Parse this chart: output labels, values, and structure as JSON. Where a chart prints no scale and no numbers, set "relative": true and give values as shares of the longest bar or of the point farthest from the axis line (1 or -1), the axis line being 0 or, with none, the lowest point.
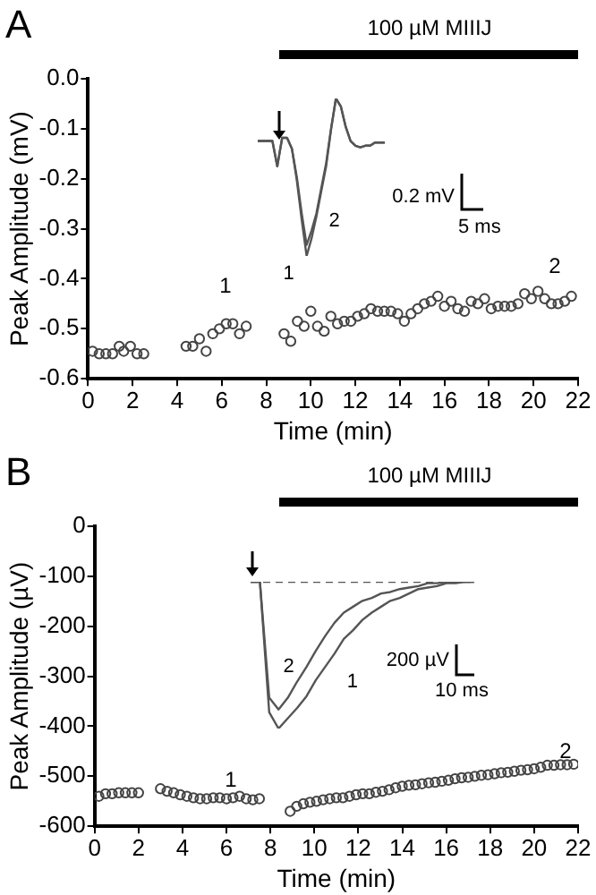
{
  "chart_data": [
    {
      "type": "scatter",
      "title": "A",
      "xlabel": "Time (min)",
      "ylabel": "Peak Amplitude (mV)",
      "marker": "circle",
      "legend": false,
      "grid": false,
      "xlim": [
        0,
        22
      ],
      "xticks": [
        0,
        2,
        4,
        6,
        8,
        10,
        12,
        14,
        16,
        18,
        20,
        22
      ],
      "ylim": [
        -0.6,
        0
      ],
      "yticks": [
        -0.6,
        -0.5,
        -0.4,
        -0.3,
        -0.2,
        -0.1,
        {
          "value": 0,
          "label": "0.0"
        }
      ],
      "series": [
        {
          "color": "#444444",
          "x": [
            0.2,
            0.5,
            0.8,
            1.1,
            1.4,
            1.6,
            1.9,
            2.2,
            2.5,
            4.4,
            4.7,
            5.0,
            5.3,
            5.6,
            5.9,
            6.2,
            6.5,
            6.8,
            7.1,
            8.8,
            9.1,
            9.4,
            9.7,
            10.0,
            10.3,
            10.6,
            10.9,
            11.2,
            11.5,
            11.8,
            12.1,
            12.4,
            12.7,
            13.0,
            13.3,
            13.6,
            13.9,
            14.2,
            14.5,
            14.8,
            15.1,
            15.4,
            15.7,
            16.0,
            16.3,
            16.6,
            16.9,
            17.2,
            17.5,
            17.8,
            18.1,
            18.4,
            18.7,
            19.0,
            19.3,
            19.6,
            19.9,
            20.2,
            20.5,
            20.8,
            21.1,
            21.4,
            21.7
          ],
          "values": [
            -0.545,
            -0.55,
            -0.55,
            -0.55,
            -0.535,
            -0.545,
            -0.535,
            -0.55,
            -0.55,
            -0.535,
            -0.535,
            -0.52,
            -0.545,
            -0.51,
            -0.5,
            -0.49,
            -0.49,
            -0.51,
            -0.495,
            -0.51,
            -0.525,
            -0.485,
            -0.495,
            -0.465,
            -0.495,
            -0.505,
            -0.475,
            -0.49,
            -0.485,
            -0.485,
            -0.475,
            -0.47,
            -0.46,
            -0.465,
            -0.465,
            -0.465,
            -0.47,
            -0.485,
            -0.47,
            -0.46,
            -0.45,
            -0.445,
            -0.435,
            -0.455,
            -0.445,
            -0.46,
            -0.465,
            -0.445,
            -0.45,
            -0.44,
            -0.46,
            -0.455,
            -0.455,
            -0.455,
            -0.45,
            -0.43,
            -0.44,
            -0.425,
            -0.44,
            -0.45,
            -0.45,
            -0.445,
            -0.435
          ]
        }
      ],
      "annotations": [
        "100 µM MIIIJ",
        "1",
        "2"
      ]
    },
    {
      "type": "line",
      "relative": true,
      "legend": false,
      "line_style": "solid",
      "categories": [
        null,
        null,
        null,
        null,
        null,
        null,
        null,
        null,
        null,
        null,
        null,
        null,
        null,
        null,
        null,
        null,
        null,
        null,
        null,
        null,
        null,
        null,
        null,
        null,
        null,
        null,
        null
      ],
      "series": [
        {
          "name": "1",
          "color": "#555555",
          "values": [
            0.73,
            0.73,
            0.73,
            0.73,
            0.57,
            0.75,
            0.75,
            0.68,
            0.48,
            0.23,
            0,
            0.11,
            0.25,
            0.41,
            0.57,
            0.8,
            1,
            0.95,
            0.82,
            0.73,
            0.7,
            0.69,
            0.7,
            0.7,
            0.72,
            0.72,
            0.72
          ]
        },
        {
          "name": "2",
          "color": "#555555",
          "values": [
            0.73,
            0.73,
            0.73,
            0.73,
            0.57,
            0.75,
            0.75,
            0.68,
            0.5,
            0.27,
            0.07,
            0.16,
            0.27,
            0.43,
            0.59,
            0.81,
            1,
            0.95,
            0.82,
            0.73,
            0.7,
            0.69,
            0.7,
            0.7,
            0.72,
            0.72,
            0.72
          ]
        }
      ],
      "annotations": [
        "0.2 mV",
        "5 ms"
      ]
    },
    {
      "type": "scatter",
      "title": "B",
      "xlabel": "Time (min)",
      "ylabel": "Peak Amplitude (µV)",
      "marker": "circle",
      "legend": false,
      "grid": false,
      "xlim": [
        0,
        22
      ],
      "xticks": [
        0,
        2,
        4,
        6,
        8,
        10,
        12,
        14,
        16,
        18,
        20,
        22
      ],
      "ylim": [
        -600,
        0
      ],
      "yticks": [
        -600,
        -500,
        -400,
        -300,
        -200,
        -100,
        0
      ],
      "series": [
        {
          "color": "#444444",
          "x": [
            0.2,
            0.5,
            0.8,
            1.1,
            1.4,
            1.7,
            2.0,
            3.0,
            3.3,
            3.6,
            3.9,
            4.2,
            4.5,
            4.8,
            5.1,
            5.4,
            5.7,
            6.0,
            6.3,
            6.6,
            6.9,
            7.2,
            7.5,
            8.9,
            9.2,
            9.5,
            9.8,
            10.1,
            10.4,
            10.7,
            11.0,
            11.3,
            11.6,
            11.9,
            12.2,
            12.5,
            12.8,
            13.1,
            13.4,
            13.7,
            14.0,
            14.3,
            14.6,
            14.9,
            15.2,
            15.5,
            15.8,
            16.1,
            16.4,
            16.7,
            17.0,
            17.3,
            17.6,
            17.9,
            18.2,
            18.5,
            18.8,
            19.1,
            19.4,
            19.7,
            20.0,
            20.3,
            20.6,
            20.9,
            21.2,
            21.5,
            21.8
          ],
          "values": [
            -540,
            -535,
            -535,
            -533,
            -533,
            -533,
            -533,
            -525,
            -530,
            -533,
            -537,
            -540,
            -543,
            -545,
            -545,
            -543,
            -543,
            -545,
            -543,
            -540,
            -545,
            -547,
            -545,
            -570,
            -560,
            -555,
            -552,
            -550,
            -547,
            -545,
            -543,
            -543,
            -540,
            -537,
            -535,
            -535,
            -532,
            -530,
            -527,
            -523,
            -520,
            -518,
            -517,
            -515,
            -513,
            -512,
            -510,
            -508,
            -505,
            -503,
            -502,
            -500,
            -498,
            -497,
            -495,
            -493,
            -492,
            -490,
            -488,
            -487,
            -485,
            -482,
            -478,
            -478,
            -477,
            -477,
            -476
          ]
        }
      ],
      "annotations": [
        "100 µM MIIIJ",
        "1",
        "2"
      ]
    },
    {
      "type": "line",
      "relative": true,
      "legend": false,
      "categories": [
        null,
        null,
        null,
        null,
        null,
        null,
        null,
        null,
        null,
        null,
        null,
        null,
        null,
        null,
        null,
        null,
        null,
        null,
        null,
        null,
        null,
        null,
        null,
        null,
        null
      ],
      "series": [
        {
          "name": "1",
          "color": "#555555",
          "line_style": "solid",
          "values": [
            1,
            1,
            0.11,
            0,
            0.07,
            0.14,
            0.22,
            0.33,
            0.42,
            0.51,
            0.61,
            0.67,
            0.74,
            0.79,
            0.83,
            0.87,
            0.89,
            0.92,
            0.95,
            0.96,
            0.97,
            0.99,
            0.99,
            1,
            1
          ]
        },
        {
          "name": "2",
          "color": "#555555",
          "line_style": "solid",
          "values": [
            1,
            1,
            0.21,
            0.13,
            0.21,
            0.32,
            0.42,
            0.53,
            0.63,
            0.72,
            0.79,
            0.83,
            0.87,
            0.89,
            0.92,
            0.93,
            0.95,
            0.96,
            0.97,
            0.99,
            0.99,
            1,
            1,
            1,
            1
          ]
        },
        {
          "color": "#555555",
          "line_style": "dashed",
          "values": [
            1,
            1,
            1,
            1,
            1,
            1,
            1,
            1,
            1,
            1,
            1,
            1,
            1,
            1,
            1,
            1,
            1,
            1,
            1,
            1,
            1,
            1,
            1,
            1,
            1
          ]
        }
      ],
      "annotations": [
        "200 µV",
        "10 ms"
      ]
    }
  ]
}
